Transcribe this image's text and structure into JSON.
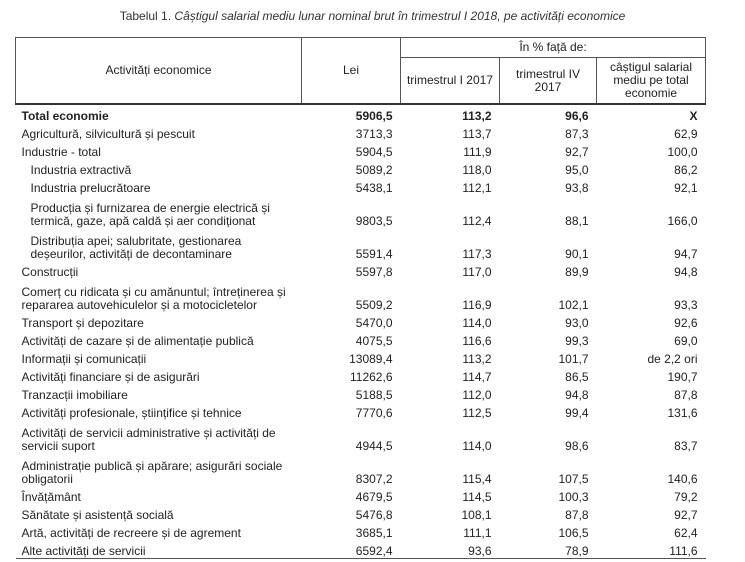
{
  "caption": {
    "lead": "Tabelul 1.",
    "rest": "Câștigul salarial mediu lunar nominal brut în trimestrul I 2018, pe activități economice"
  },
  "table": {
    "headers": {
      "activity": "Activități economice",
      "lei": "Lei",
      "percent_group": "În % față de:",
      "q1_2017": "trimestrul I 2017",
      "q4_2017": "trimestrul IV 2017",
      "avg_total": "câștigul salarial mediu pe total economie"
    },
    "rows": [
      {
        "name": "Total economie",
        "lei": "5906,5",
        "q1": "113,2",
        "q4": "96,6",
        "avg": "X"
      },
      {
        "name": "Agricultură, silvicultură și pescuit",
        "lei": "3713,3",
        "q1": "113,7",
        "q4": "87,3",
        "avg": "62,9"
      },
      {
        "name": "Industrie - total",
        "lei": "5904,5",
        "q1": "111,9",
        "q4": "92,7",
        "avg": "100,0"
      },
      {
        "name": "Industria extractivă",
        "lei": "5089,2",
        "q1": "118,0",
        "q4": "95,0",
        "avg": "86,2"
      },
      {
        "name": "Industria prelucrătoare",
        "lei": "5438,1",
        "q1": "112,1",
        "q4": "93,8",
        "avg": "92,1"
      },
      {
        "name": "Producția și furnizarea de energie electrică și termică, gaze, apă caldă și aer condiționat",
        "lei": "9803,5",
        "q1": "112,4",
        "q4": "88,1",
        "avg": "166,0"
      },
      {
        "name": "Distribuția apei; salubritate, gestionarea deșeurilor, activități de decontaminare",
        "lei": "5591,4",
        "q1": "117,3",
        "q4": "90,1",
        "avg": "94,7"
      },
      {
        "name": "Construcții",
        "lei": "5597,8",
        "q1": "117,0",
        "q4": "89,9",
        "avg": "94,8"
      },
      {
        "name": "Comerț cu ridicata și cu amănuntul; întreținerea și repararea autovehiculelor și a motocicletelor",
        "lei": "5509,2",
        "q1": "116,9",
        "q4": "102,1",
        "avg": "93,3"
      },
      {
        "name": "Transport și depozitare",
        "lei": "5470,0",
        "q1": "114,0",
        "q4": "93,0",
        "avg": "92,6"
      },
      {
        "name": "Activități de cazare și de alimentație publică",
        "lei": "4075,5",
        "q1": "116,6",
        "q4": "99,3",
        "avg": "69,0"
      },
      {
        "name": "Informații și comunicații",
        "lei": "13089,4",
        "q1": "113,2",
        "q4": "101,7",
        "avg": "de 2,2 ori"
      },
      {
        "name": "Activități financiare și de asigurări",
        "lei": "11262,6",
        "q1": "114,7",
        "q4": "86,5",
        "avg": "190,7"
      },
      {
        "name": "Tranzacții imobiliare",
        "lei": "5188,5",
        "q1": "112,0",
        "q4": "94,8",
        "avg": "87,8"
      },
      {
        "name": "Activități profesionale, științifice și tehnice",
        "lei": "7770,6",
        "q1": "112,5",
        "q4": "99,4",
        "avg": "131,6"
      },
      {
        "name": "Activități de servicii administrative și activități de servicii suport",
        "lei": "4944,5",
        "q1": "114,0",
        "q4": "98,6",
        "avg": "83,7"
      },
      {
        "name": "Administrație publică și apărare; asigurări sociale obligatorii",
        "lei": "8307,2",
        "q1": "115,4",
        "q4": "107,5",
        "avg": "140,6"
      },
      {
        "name": "Învățământ",
        "lei": "4679,5",
        "q1": "114,5",
        "q4": "100,3",
        "avg": "79,2"
      },
      {
        "name": "Sănătate și asistență socială",
        "lei": "5476,8",
        "q1": "108,1",
        "q4": "87,8",
        "avg": "92,7"
      },
      {
        "name": "Artă, activități de recreere și de agrement",
        "lei": "3685,1",
        "q1": "111,1",
        "q4": "106,5",
        "avg": "62,4"
      },
      {
        "name": "Alte activități de servicii",
        "lei": "6592,4",
        "q1": "93,6",
        "q4": "78,9",
        "avg": "111,6"
      }
    ]
  }
}
